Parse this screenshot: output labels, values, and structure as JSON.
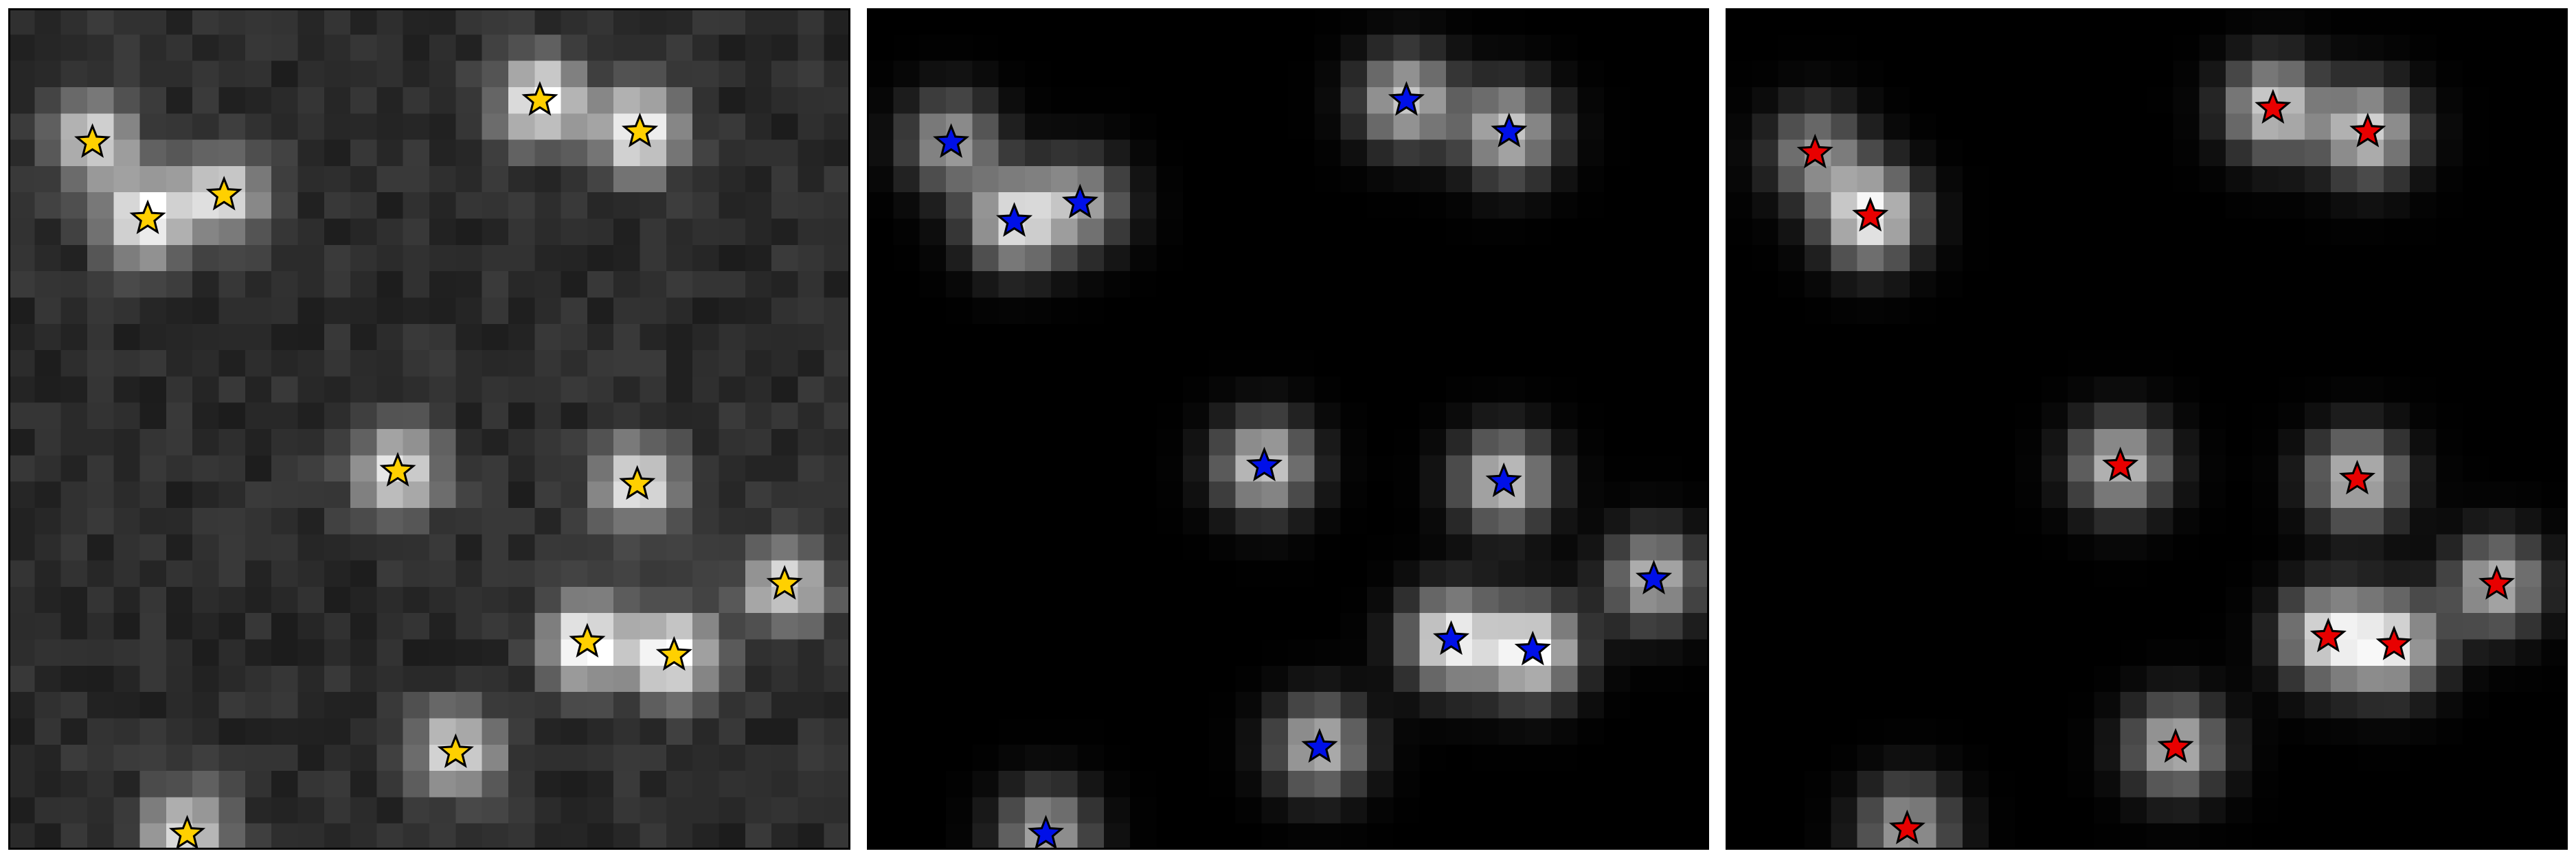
{
  "grid": 32,
  "panels": [
    {
      "name": "noisy-observed-panel",
      "marker_color": "#FFD000",
      "noise": true,
      "background_level": 0.17,
      "source_width": 1.15,
      "sources": [
        [
          3.2,
          5.1,
          0.7
        ],
        [
          5.3,
          8.0,
          0.85
        ],
        [
          8.2,
          7.1,
          0.7
        ],
        [
          20.2,
          3.5,
          0.85
        ],
        [
          24.0,
          4.7,
          0.85
        ],
        [
          14.8,
          17.6,
          0.8
        ],
        [
          23.9,
          18.1,
          0.75
        ],
        [
          29.5,
          21.9,
          0.72
        ],
        [
          22.0,
          24.1,
          0.88
        ],
        [
          25.3,
          24.6,
          0.88
        ],
        [
          17.0,
          28.3,
          0.72
        ],
        [
          6.8,
          31.4,
          0.7
        ]
      ],
      "stars": [
        [
          3.2,
          5.1
        ],
        [
          5.3,
          8.0
        ],
        [
          8.2,
          7.1
        ],
        [
          20.2,
          3.5
        ],
        [
          24.0,
          4.7
        ],
        [
          14.8,
          17.6
        ],
        [
          23.9,
          18.1
        ],
        [
          29.5,
          21.9
        ],
        [
          22.0,
          24.1
        ],
        [
          25.3,
          24.6
        ],
        [
          17.0,
          28.3
        ],
        [
          6.8,
          31.4
        ]
      ]
    },
    {
      "name": "model-blue-panel",
      "marker_color": "#0010E8",
      "noise": false,
      "background_level": 0.0,
      "source_width": 1.25,
      "sources": [
        [
          3.2,
          5.1,
          0.62
        ],
        [
          5.6,
          8.1,
          0.85
        ],
        [
          8.1,
          7.4,
          0.6
        ],
        [
          20.5,
          3.5,
          0.78
        ],
        [
          24.4,
          4.7,
          0.78
        ],
        [
          15.1,
          17.4,
          0.8
        ],
        [
          24.2,
          18.0,
          0.8
        ],
        [
          29.9,
          21.7,
          0.72
        ],
        [
          22.2,
          24.0,
          0.95
        ],
        [
          25.3,
          24.4,
          0.98
        ],
        [
          17.2,
          28.1,
          0.72
        ],
        [
          6.8,
          31.4,
          0.65
        ]
      ],
      "stars": [
        [
          3.2,
          5.1
        ],
        [
          5.6,
          8.1
        ],
        [
          8.1,
          7.4
        ],
        [
          20.5,
          3.5
        ],
        [
          24.4,
          4.7
        ],
        [
          15.1,
          17.4
        ],
        [
          24.2,
          18.0
        ],
        [
          29.9,
          21.7
        ],
        [
          22.2,
          24.0
        ],
        [
          25.3,
          24.4
        ],
        [
          17.2,
          28.1
        ],
        [
          6.8,
          31.4
        ]
      ]
    },
    {
      "name": "model-red-panel",
      "marker_color": "#E80000",
      "noise": false,
      "background_level": 0.0,
      "source_width": 1.25,
      "sources": [
        [
          3.4,
          5.5,
          0.55
        ],
        [
          5.5,
          7.9,
          0.98
        ],
        [
          20.8,
          3.8,
          0.82
        ],
        [
          24.4,
          4.7,
          0.82
        ],
        [
          15.0,
          17.4,
          0.75
        ],
        [
          24.0,
          17.9,
          0.75
        ],
        [
          29.3,
          21.9,
          0.72
        ],
        [
          22.9,
          23.9,
          0.85
        ],
        [
          25.4,
          24.2,
          0.85
        ],
        [
          17.1,
          28.1,
          0.72
        ],
        [
          6.9,
          31.2,
          0.62
        ]
      ],
      "stars": [
        [
          3.4,
          5.5
        ],
        [
          5.5,
          7.9
        ],
        [
          20.8,
          3.8
        ],
        [
          24.4,
          4.7
        ],
        [
          15.0,
          17.4
        ],
        [
          24.0,
          17.9
        ],
        [
          29.3,
          21.9
        ],
        [
          22.9,
          23.9
        ],
        [
          25.4,
          24.2
        ],
        [
          17.1,
          28.1
        ],
        [
          6.9,
          31.2
        ]
      ]
    }
  ]
}
